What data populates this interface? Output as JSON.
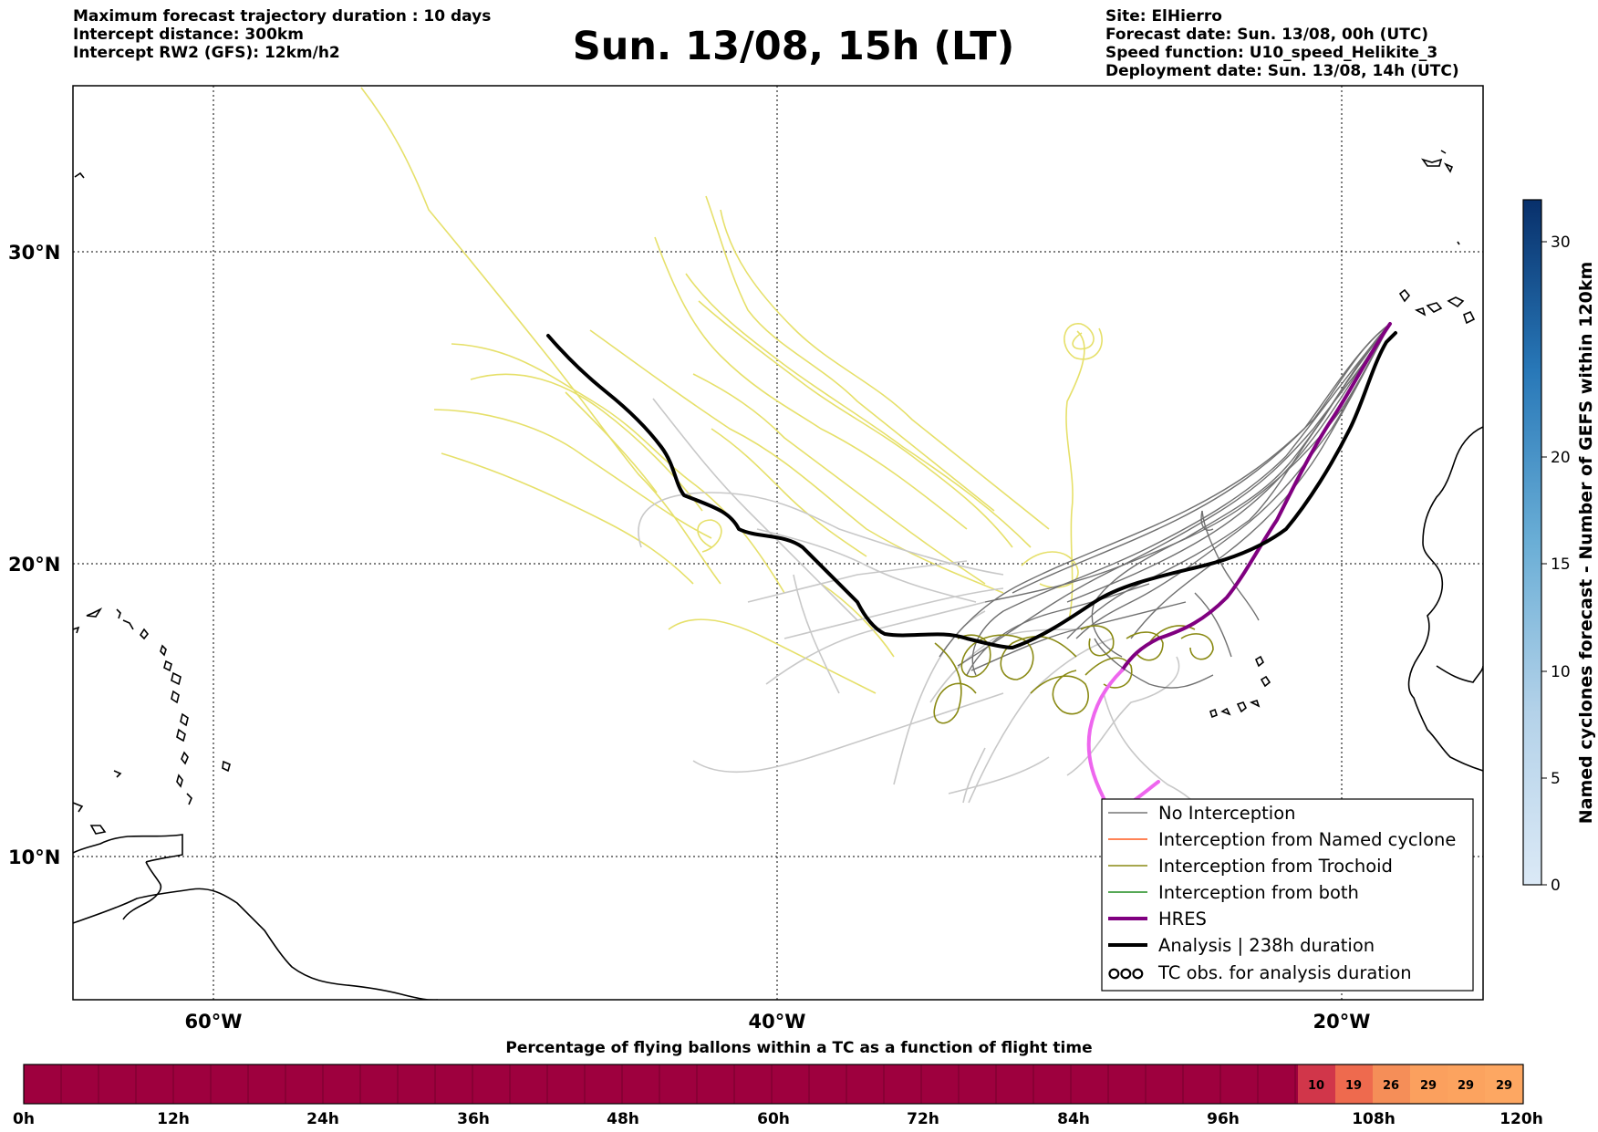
{
  "header": {
    "left_lines": [
      "Maximum forecast trajectory duration : 10 days",
      "Intercept distance: 300km",
      "Intercept RW2 (GFS):  12km/h2"
    ],
    "title": "Sun. 13/08, 15h (LT)",
    "right_lines": [
      "Site: ElHierro",
      "Forecast date: Sun. 13/08, 00h (UTC)",
      "Speed function: U10_speed_Helikite_3",
      "Deployment date: Sun. 13/08, 14h (UTC)"
    ]
  },
  "map": {
    "lon_labels": [
      "60°W",
      "40°W",
      "20°W"
    ],
    "lat_labels": [
      "30°N",
      "20°N",
      "10°N"
    ],
    "legend": [
      {
        "label": "No Interception",
        "color": "#777777"
      },
      {
        "label": "Interception from Named cyclone",
        "color": "#ff5a1f"
      },
      {
        "label": "Interception from Trochoid",
        "color": "#8a8a14"
      },
      {
        "label": "Interception from both",
        "color": "#1e8c1e"
      },
      {
        "label": "HRES",
        "color": "#800080"
      },
      {
        "label": "Analysis | 238h duration",
        "color": "#000000"
      },
      {
        "label": "TC obs. for analysis duration",
        "color": "#000000"
      }
    ],
    "tc_obs_symbol": "ഠഠഠ",
    "colors": {
      "ensemble_yellow": "#e6e06a",
      "ensemble_gray_light": "#c8c8c8",
      "ensemble_gray_dark": "#707070",
      "trochoid": "#8a8a14",
      "hres": "#800080",
      "hres_extension": "#ee66ee",
      "analysis": "#000000",
      "land_outline": "#000000"
    }
  },
  "colorbar": {
    "title": "Named cyclones forecast - Number of GEFS within 120km",
    "ticks": [
      "0",
      "5",
      "10",
      "15",
      "20",
      "30"
    ]
  },
  "percent_bar": {
    "caption": "Percentage of flying ballons within a TC as a function of flight time",
    "ticks": [
      "0h",
      "12h",
      "24h",
      "36h",
      "48h",
      "60h",
      "72h",
      "84h",
      "96h",
      "108h",
      "120h"
    ],
    "cells": [
      "10",
      "19",
      "26",
      "29",
      "29",
      "29"
    ],
    "cell_colors": [
      "#d1364a",
      "#ee6a4e",
      "#f58e58",
      "#fba05e",
      "#fca35f",
      "#fda762"
    ],
    "base_color": "#9e003e"
  }
}
